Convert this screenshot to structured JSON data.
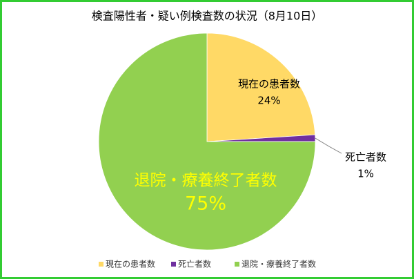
{
  "chart_data": {
    "type": "pie",
    "title": "検査陽性者・疑い例検査数の状況（8月10日）",
    "categories": [
      "現在の患者数",
      "死亡者数",
      "退院・療養終了者数"
    ],
    "values": [
      24,
      1,
      75
    ],
    "value_labels": [
      "24%",
      "1%",
      "75%"
    ],
    "colors": [
      "#ffd966",
      "#7030a0",
      "#92d050"
    ],
    "legend": "bottom"
  }
}
